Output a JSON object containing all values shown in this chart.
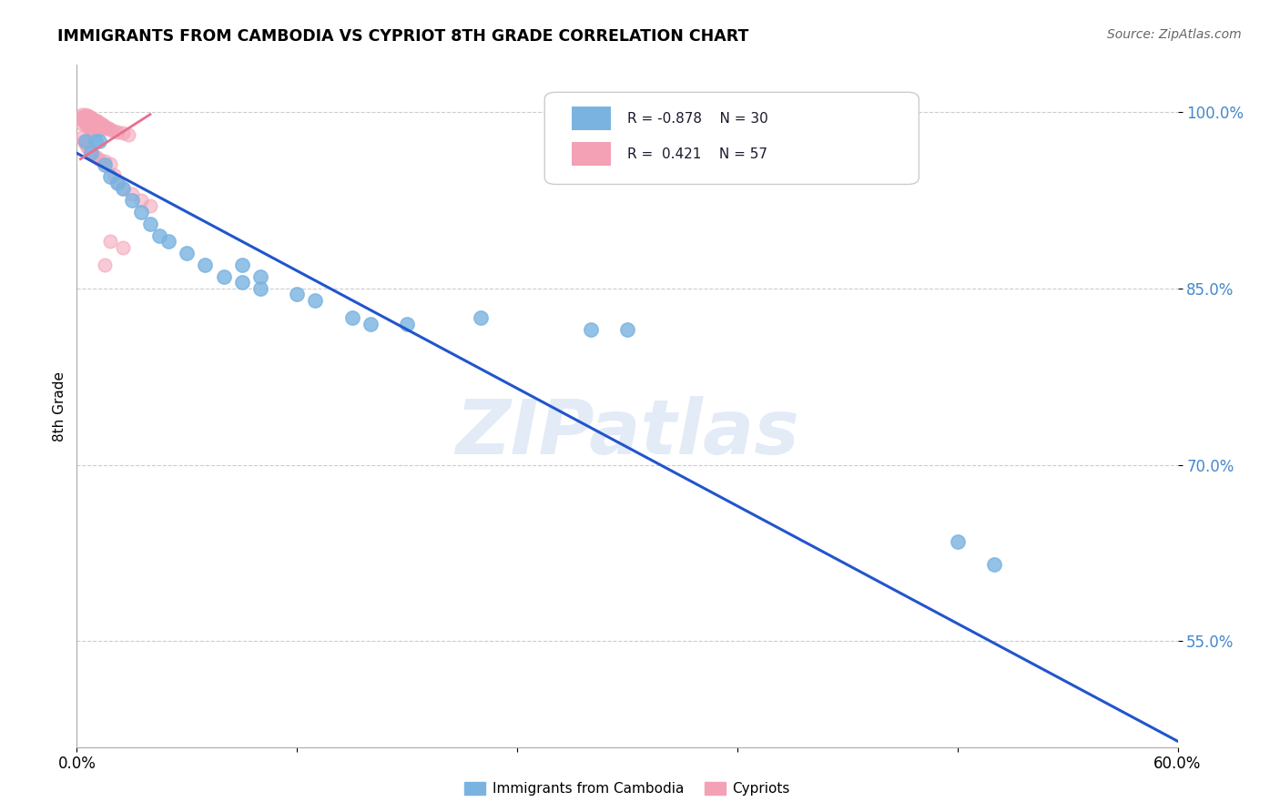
{
  "title": "IMMIGRANTS FROM CAMBODIA VS CYPRIOT 8TH GRADE CORRELATION CHART",
  "source": "Source: ZipAtlas.com",
  "ylabel": "8th Grade",
  "xlim": [
    0.0,
    0.6
  ],
  "ylim": [
    0.46,
    1.04
  ],
  "yticks": [
    0.55,
    0.7,
    0.85,
    1.0
  ],
  "ytick_labels": [
    "55.0%",
    "70.0%",
    "85.0%",
    "100.0%"
  ],
  "xticks": [
    0.0,
    0.12,
    0.24,
    0.36,
    0.48,
    0.6
  ],
  "xtick_labels": [
    "0.0%",
    "",
    "",
    "",
    "",
    "60.0%"
  ],
  "blue_label": "Immigrants from Cambodia",
  "pink_label": "Cypriots",
  "blue_R": "-0.878",
  "blue_N": "30",
  "pink_R": "0.421",
  "pink_N": "57",
  "blue_color": "#7ab3e0",
  "pink_color": "#f4a0b5",
  "line_color": "#2255cc",
  "pink_line_color": "#e87090",
  "watermark": "ZIPatlas",
  "blue_scatter": [
    [
      0.005,
      0.975
    ],
    [
      0.008,
      0.965
    ],
    [
      0.01,
      0.975
    ],
    [
      0.012,
      0.975
    ],
    [
      0.015,
      0.955
    ],
    [
      0.018,
      0.945
    ],
    [
      0.022,
      0.94
    ],
    [
      0.025,
      0.935
    ],
    [
      0.03,
      0.925
    ],
    [
      0.035,
      0.915
    ],
    [
      0.04,
      0.905
    ],
    [
      0.045,
      0.895
    ],
    [
      0.05,
      0.89
    ],
    [
      0.06,
      0.88
    ],
    [
      0.07,
      0.87
    ],
    [
      0.08,
      0.86
    ],
    [
      0.09,
      0.87
    ],
    [
      0.09,
      0.855
    ],
    [
      0.1,
      0.86
    ],
    [
      0.1,
      0.85
    ],
    [
      0.12,
      0.845
    ],
    [
      0.13,
      0.84
    ],
    [
      0.15,
      0.825
    ],
    [
      0.16,
      0.82
    ],
    [
      0.18,
      0.82
    ],
    [
      0.22,
      0.825
    ],
    [
      0.28,
      0.815
    ],
    [
      0.3,
      0.815
    ],
    [
      0.48,
      0.635
    ],
    [
      0.5,
      0.615
    ]
  ],
  "pink_scatter": [
    [
      0.002,
      0.995
    ],
    [
      0.003,
      0.998
    ],
    [
      0.003,
      0.99
    ],
    [
      0.004,
      0.995
    ],
    [
      0.004,
      0.992
    ],
    [
      0.005,
      0.998
    ],
    [
      0.005,
      0.994
    ],
    [
      0.005,
      0.99
    ],
    [
      0.006,
      0.997
    ],
    [
      0.006,
      0.993
    ],
    [
      0.006,
      0.988
    ],
    [
      0.007,
      0.996
    ],
    [
      0.007,
      0.992
    ],
    [
      0.007,
      0.987
    ],
    [
      0.008,
      0.995
    ],
    [
      0.008,
      0.991
    ],
    [
      0.008,
      0.986
    ],
    [
      0.009,
      0.994
    ],
    [
      0.009,
      0.989
    ],
    [
      0.009,
      0.984
    ],
    [
      0.01,
      0.993
    ],
    [
      0.01,
      0.988
    ],
    [
      0.011,
      0.992
    ],
    [
      0.011,
      0.987
    ],
    [
      0.012,
      0.991
    ],
    [
      0.012,
      0.986
    ],
    [
      0.013,
      0.99
    ],
    [
      0.013,
      0.985
    ],
    [
      0.014,
      0.989
    ],
    [
      0.015,
      0.988
    ],
    [
      0.016,
      0.987
    ],
    [
      0.017,
      0.986
    ],
    [
      0.018,
      0.985
    ],
    [
      0.02,
      0.984
    ],
    [
      0.022,
      0.983
    ],
    [
      0.025,
      0.982
    ],
    [
      0.028,
      0.981
    ],
    [
      0.003,
      0.978
    ],
    [
      0.004,
      0.975
    ],
    [
      0.005,
      0.973
    ],
    [
      0.006,
      0.97
    ],
    [
      0.007,
      0.968
    ],
    [
      0.008,
      0.966
    ],
    [
      0.009,
      0.964
    ],
    [
      0.01,
      0.962
    ],
    [
      0.012,
      0.96
    ],
    [
      0.015,
      0.958
    ],
    [
      0.018,
      0.956
    ],
    [
      0.02,
      0.947
    ],
    [
      0.022,
      0.94
    ],
    [
      0.025,
      0.935
    ],
    [
      0.03,
      0.93
    ],
    [
      0.035,
      0.925
    ],
    [
      0.04,
      0.92
    ],
    [
      0.018,
      0.89
    ],
    [
      0.025,
      0.885
    ],
    [
      0.015,
      0.87
    ]
  ],
  "blue_line_x": [
    0.0,
    0.6
  ],
  "blue_line_y": [
    0.965,
    0.465
  ],
  "pink_line_x": [
    0.002,
    0.04
  ],
  "pink_line_y": [
    0.96,
    0.998
  ]
}
